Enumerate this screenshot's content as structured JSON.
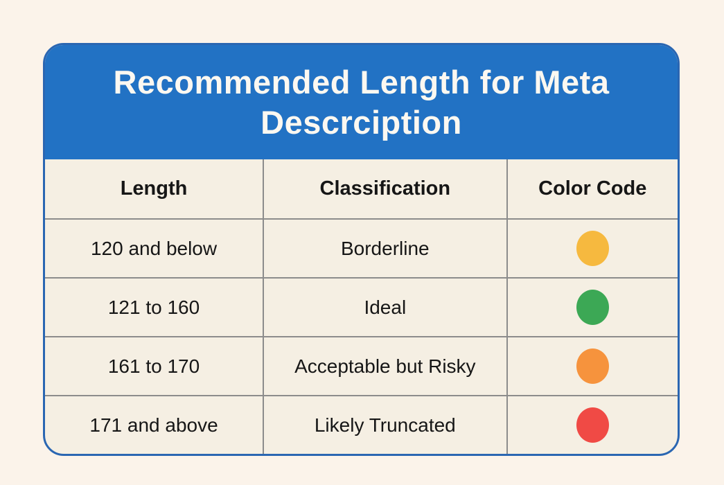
{
  "card": {
    "title_line1": "Recommended Length for Meta",
    "title_line2": "Descrciption"
  },
  "colors": {
    "page_background": "#FBF3EA",
    "header_background": "#2272C4",
    "card_border": "#2A66B2",
    "cell_background": "#F5EFE3",
    "gridline": "#8C8C8C",
    "header_text": "#FCF8F1",
    "body_text": "#161616"
  },
  "table": {
    "columns": [
      "Length",
      "Classification",
      "Color Code"
    ],
    "rows": [
      {
        "length": "120 and below",
        "classification": "Borderline",
        "color_name": "yellow",
        "color": "#F6B93F"
      },
      {
        "length": "121 to 160",
        "classification": "Ideal",
        "color_name": "green",
        "color": "#3CA855"
      },
      {
        "length": "161 to 170",
        "classification": "Acceptable but Risky",
        "color_name": "orange",
        "color": "#F6933D"
      },
      {
        "length": "171 and above",
        "classification": "Likely Truncated",
        "color_name": "red",
        "color": "#F04A45"
      }
    ]
  },
  "chart_data": {
    "type": "table",
    "title": "Recommended Length for Meta Descrciption",
    "columns": [
      "Length",
      "Classification",
      "Color Code"
    ],
    "rows": [
      [
        "120 and below",
        "Borderline",
        "yellow"
      ],
      [
        "121 to 160",
        "Ideal",
        "green"
      ],
      [
        "161 to 170",
        "Acceptable but Risky",
        "orange"
      ],
      [
        "171 and above",
        "Likely Truncated",
        "red"
      ]
    ],
    "legend_position": "none",
    "grid": true
  }
}
